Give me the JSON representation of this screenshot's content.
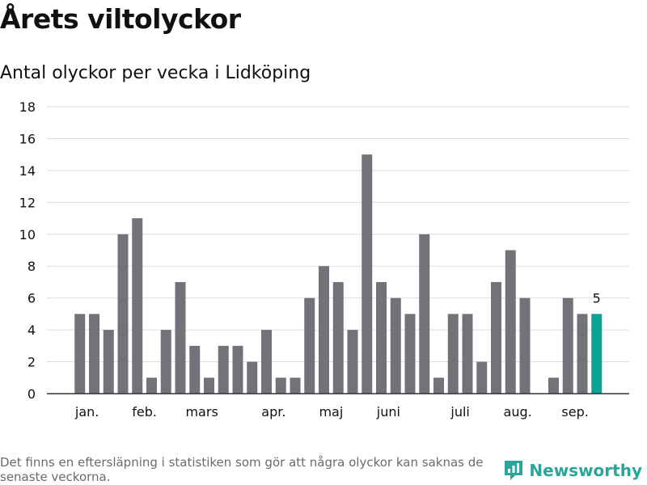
{
  "header": {
    "title": "Årets viltolyckor",
    "subtitle": "Antal olyckor per vecka i Lidköping"
  },
  "footer": {
    "note": "Det finns en eftersläpning i statistiken som gör att några olyckor kan saknas de senaste veckorna.",
    "brand": "Newsworthy",
    "brand_icon": "newsworthy-logo-icon"
  },
  "colors": {
    "bar": "#737278",
    "highlight": "#0aa396",
    "grid": "#dddddd",
    "axis": "#333333",
    "brand": "#2aa59a"
  },
  "chart_data": {
    "type": "bar",
    "title": "Antal olyckor per vecka i Lidköping",
    "xlabel": "",
    "ylabel": "",
    "ylim": [
      0,
      18
    ],
    "yticks": [
      0,
      2,
      4,
      6,
      8,
      10,
      12,
      14,
      16,
      18
    ],
    "grid": true,
    "weeks": [
      1,
      2,
      3,
      4,
      5,
      6,
      7,
      8,
      9,
      10,
      11,
      12,
      13,
      14,
      15,
      16,
      17,
      18,
      19,
      20,
      21,
      22,
      23,
      24,
      25,
      26,
      27,
      28,
      29,
      30,
      31,
      32,
      33,
      34,
      35,
      36,
      37,
      38,
      39,
      40
    ],
    "values": [
      0,
      5,
      5,
      4,
      10,
      11,
      1,
      4,
      7,
      3,
      1,
      3,
      3,
      2,
      4,
      1,
      1,
      6,
      8,
      7,
      4,
      15,
      7,
      6,
      5,
      10,
      1,
      5,
      5,
      2,
      7,
      9,
      6,
      0,
      1,
      6,
      5,
      5,
      0,
      0
    ],
    "month_labels": [
      {
        "label": "jan.",
        "week": 2.5
      },
      {
        "label": "feb.",
        "week": 6.5
      },
      {
        "label": "mars",
        "week": 10.5
      },
      {
        "label": "apr.",
        "week": 15.5
      },
      {
        "label": "maj",
        "week": 19.5
      },
      {
        "label": "juni",
        "week": 23.5
      },
      {
        "label": "juli",
        "week": 28.5
      },
      {
        "label": "aug.",
        "week": 32.5
      },
      {
        "label": "sep.",
        "week": 36.5
      }
    ],
    "highlight_week": 38,
    "annotations": [
      {
        "week": 38,
        "text": "5"
      }
    ]
  }
}
